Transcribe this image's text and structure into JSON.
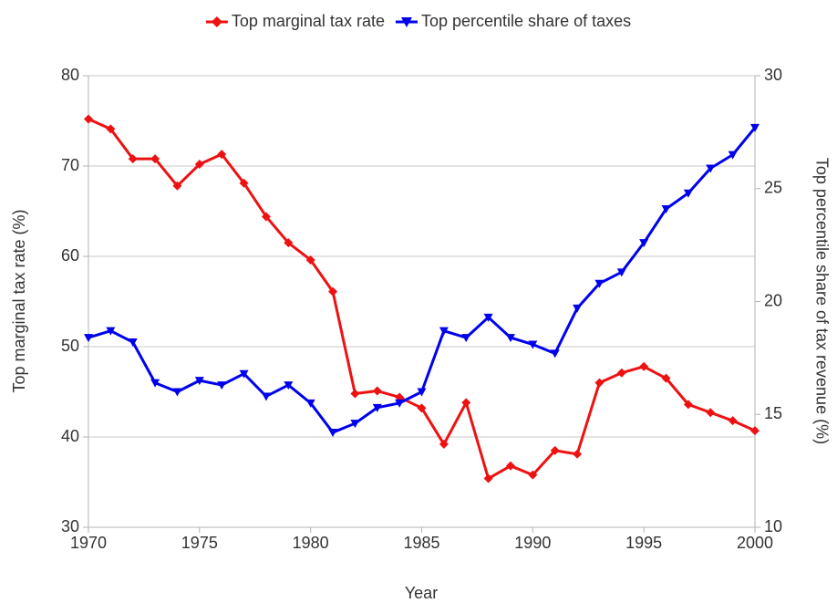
{
  "chart_data": {
    "type": "line",
    "xlabel": "Year",
    "ylabel": "Top marginal tax rate (%)",
    "y2label": "Top percentile share of tax revenue (%)",
    "x": [
      1970,
      1971,
      1972,
      1973,
      1974,
      1975,
      1976,
      1977,
      1978,
      1979,
      1980,
      1981,
      1982,
      1983,
      1984,
      1985,
      1986,
      1987,
      1988,
      1989,
      1990,
      1991,
      1992,
      1993,
      1994,
      1995,
      1996,
      1997,
      1998,
      1999,
      2000
    ],
    "series": [
      {
        "name": "Top marginal tax rate",
        "color": "#ee1111",
        "marker": "diamond",
        "values": [
          75.2,
          74.1,
          70.8,
          70.8,
          67.8,
          70.2,
          71.3,
          68.1,
          64.4,
          61.5,
          59.6,
          56.1,
          44.8,
          45.1,
          44.4,
          43.2,
          39.2,
          43.8,
          35.4,
          36.8,
          35.8,
          38.5,
          38.1,
          46.0,
          47.1,
          47.8,
          46.5,
          43.6,
          42.7,
          41.8,
          40.7
        ]
      },
      {
        "name": "Top percentile share of taxes",
        "color": "#0000ee",
        "marker": "triangle-down",
        "axis": "y2",
        "values": [
          18.4,
          18.7,
          18.2,
          16.4,
          16.0,
          16.5,
          16.3,
          16.8,
          15.8,
          16.3,
          15.5,
          14.2,
          14.6,
          15.3,
          15.5,
          16.0,
          18.7,
          18.4,
          19.3,
          18.4,
          18.1,
          17.7,
          19.7,
          20.8,
          21.3,
          22.6,
          24.1,
          24.8,
          25.9,
          26.5,
          27.7
        ]
      }
    ],
    "xlim": [
      1970,
      2000
    ],
    "xticks": [
      1970,
      1975,
      1980,
      1985,
      1990,
      1995,
      2000
    ],
    "ylim": [
      30,
      80
    ],
    "yticks": [
      30,
      40,
      50,
      60,
      70,
      80
    ],
    "y2lim": [
      10,
      30
    ],
    "y2ticks": [
      10,
      15,
      20,
      25,
      30
    ],
    "grid": true,
    "legend": "top"
  }
}
